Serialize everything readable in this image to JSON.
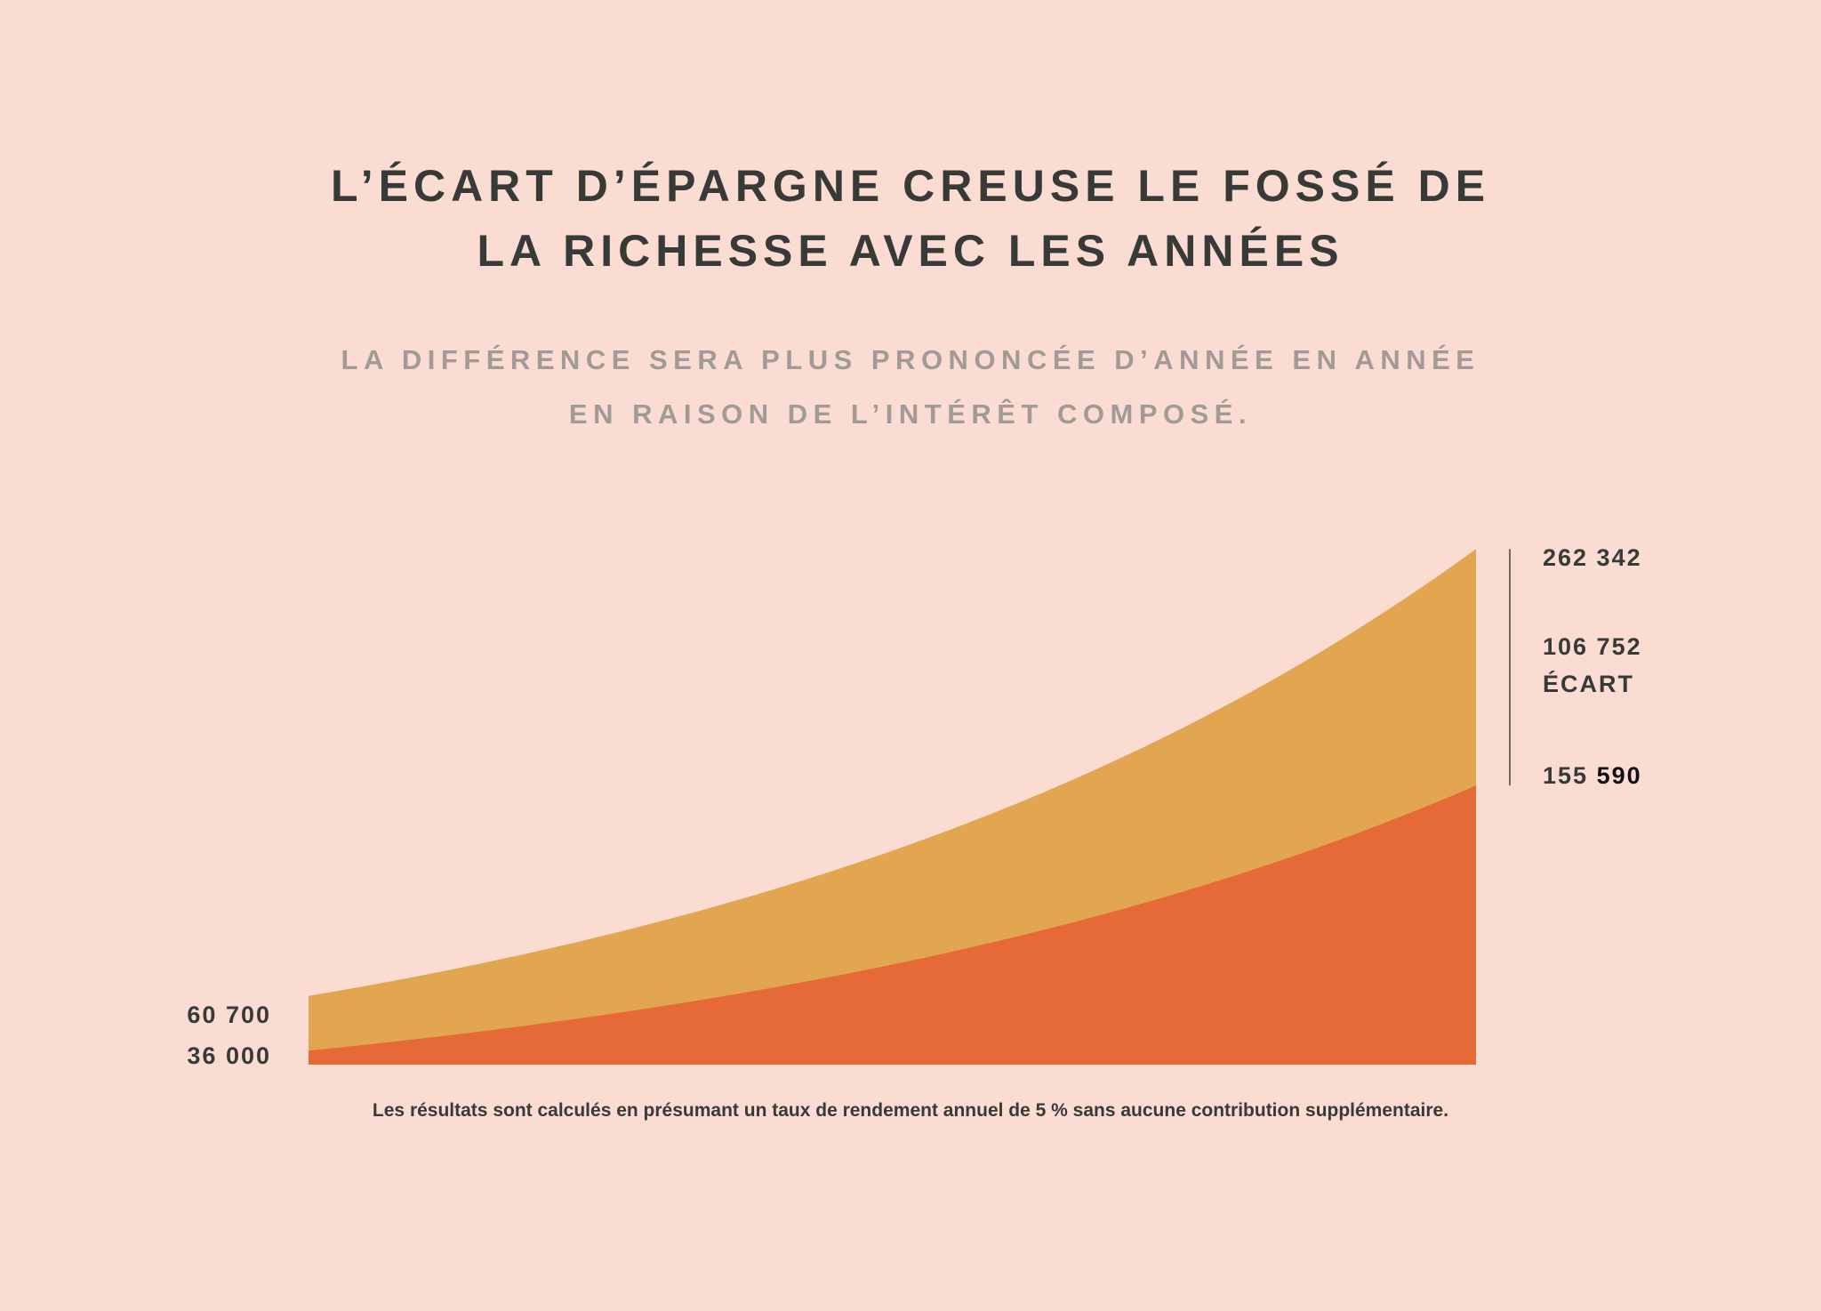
{
  "title_lines": [
    "L’ÉCART D’ÉPARGNE CREUSE LE FOSSÉ DE",
    "LA RICHESSE AVEC LES ANNÉES"
  ],
  "subtitle_lines": [
    "LA DIFFÉRENCE SERA PLUS PRONONCÉE D’ANNÉE EN ANNÉE",
    "EN RAISON DE L’INTÉRÊT COMPOSÉ."
  ],
  "footnote": "Les résultats sont calculés en présumant un taux de rendement annuel de 5 % sans aucune contribution supplémentaire.",
  "colors": {
    "background": "#fadcd2",
    "upper_area": "#e2a550",
    "lower_area": "#e56a37",
    "text": "#383a38"
  },
  "chart_data": {
    "type": "area",
    "annual_rate_percent": 5,
    "series": [
      {
        "start": 60700,
        "end": 262342,
        "start_label": "60 700",
        "end_label": "262 342",
        "color": "#e2a550"
      },
      {
        "start": 36000,
        "end": 155590,
        "start_label": "36 000",
        "end_label_part1": "155",
        "end_label_part2": "590",
        "color": "#e56a37"
      }
    ],
    "gap": {
      "value": 106752,
      "value_label": "106 752",
      "label": "ÉCART"
    },
    "grid": false,
    "legend": "none"
  }
}
